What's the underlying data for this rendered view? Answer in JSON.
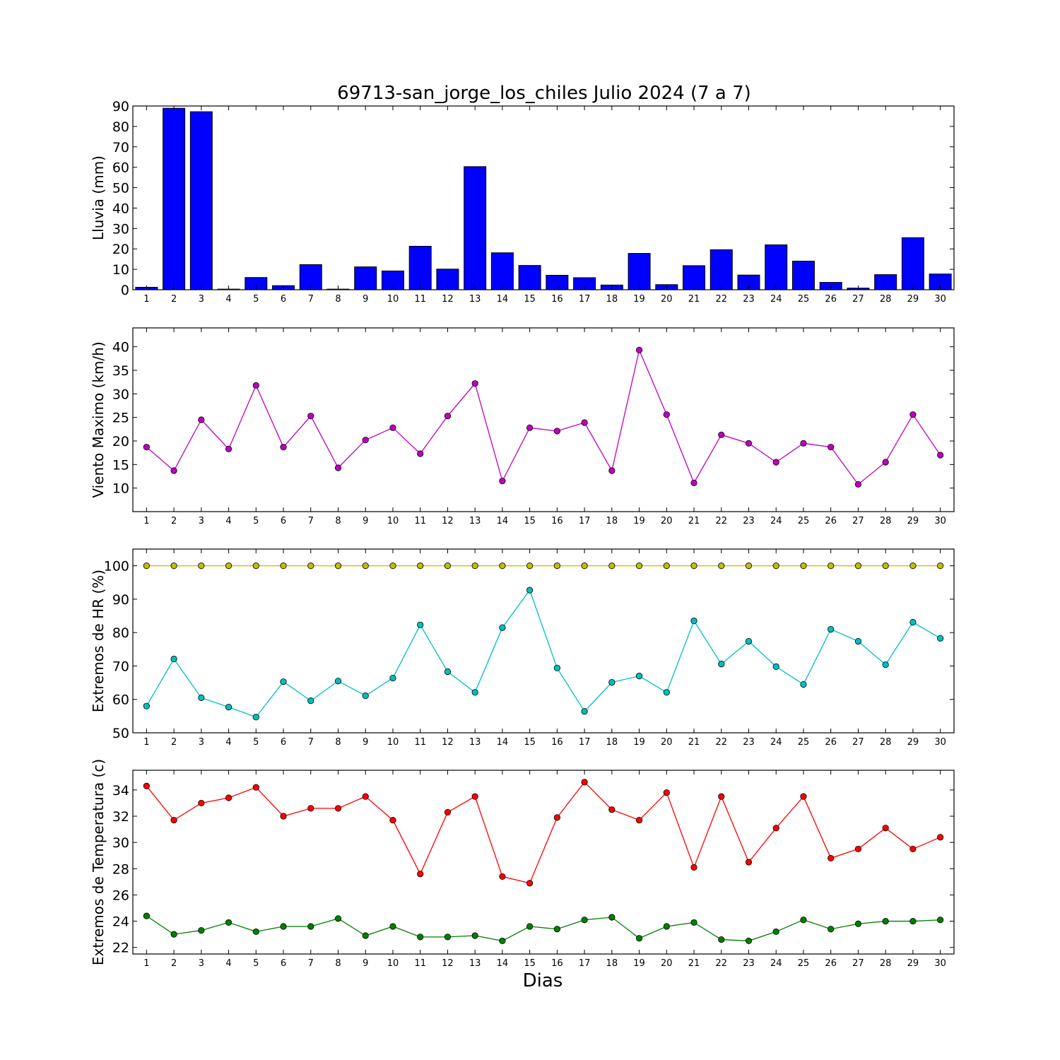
{
  "figure": {
    "title": "69713-san_jorge_los_chiles Julio 2024  (7 a 7)",
    "xlabel": "Dias"
  },
  "chart_data": [
    {
      "type": "bar",
      "ylabel": "Lluvia (mm)",
      "ylim": [
        0,
        90
      ],
      "yticks": [
        0,
        10,
        20,
        30,
        40,
        50,
        60,
        70,
        80,
        90
      ],
      "categories": [
        "1",
        "2",
        "3",
        "4",
        "5",
        "6",
        "7",
        "8",
        "9",
        "10",
        "11",
        "12",
        "13",
        "14",
        "15",
        "16",
        "17",
        "18",
        "19",
        "20",
        "21",
        "22",
        "23",
        "24",
        "25",
        "26",
        "27",
        "28",
        "29",
        "30"
      ],
      "bar_color": "#0000ff",
      "series": [
        {
          "values": [
            1.2,
            88.9,
            87.2,
            0.3,
            6.0,
            2.0,
            12.3,
            0.3,
            11.2,
            9.2,
            21.3,
            10.1,
            60.3,
            18.1,
            11.9,
            7.1,
            5.9,
            2.3,
            17.8,
            2.5,
            11.8,
            19.6,
            7.2,
            22.0,
            14.0,
            3.6,
            0.8,
            7.4,
            25.5,
            7.7
          ]
        }
      ],
      "grid": false
    },
    {
      "type": "line",
      "ylabel": "Viento Maximo (km/h)",
      "ylim": [
        5,
        44
      ],
      "yticks": [
        10,
        15,
        20,
        25,
        30,
        35,
        40
      ],
      "x": [
        1,
        2,
        3,
        4,
        5,
        6,
        7,
        8,
        9,
        10,
        11,
        12,
        13,
        14,
        15,
        16,
        17,
        18,
        19,
        20,
        21,
        22,
        23,
        24,
        25,
        26,
        27,
        28,
        29,
        30
      ],
      "series": [
        {
          "color": "#bf00bf",
          "values": [
            18.7,
            13.7,
            24.5,
            18.3,
            31.8,
            18.7,
            25.3,
            14.3,
            20.2,
            22.8,
            17.3,
            25.3,
            32.2,
            11.5,
            22.8,
            22.1,
            23.9,
            13.7,
            39.3,
            25.6,
            11.1,
            21.3,
            19.5,
            15.5,
            19.5,
            18.7,
            10.8,
            15.5,
            25.6,
            17.0
          ]
        }
      ],
      "grid": false
    },
    {
      "type": "line",
      "ylabel": "Extremos de HR (%)",
      "ylim": [
        50,
        105
      ],
      "yticks": [
        50,
        60,
        70,
        80,
        90,
        100
      ],
      "x": [
        1,
        2,
        3,
        4,
        5,
        6,
        7,
        8,
        9,
        10,
        11,
        12,
        13,
        14,
        15,
        16,
        17,
        18,
        19,
        20,
        21,
        22,
        23,
        24,
        25,
        26,
        27,
        28,
        29,
        30
      ],
      "series": [
        {
          "color": "#bfbf00",
          "values": [
            100,
            100,
            100,
            100,
            100,
            100,
            100,
            100,
            100,
            100,
            100,
            100,
            100,
            100,
            100,
            100,
            100,
            100,
            100,
            100,
            100,
            100,
            100,
            100,
            100,
            100,
            100,
            100,
            100,
            100
          ]
        },
        {
          "color": "#00bfbf",
          "values": [
            58,
            72.1,
            60.5,
            57.7,
            54.7,
            65.3,
            59.6,
            65.5,
            61.1,
            66.4,
            82.3,
            68.3,
            62.1,
            81.5,
            92.7,
            69.4,
            56.4,
            65.1,
            67,
            62.1,
            83.5,
            70.6,
            77.4,
            69.8,
            64.5,
            81,
            77.4,
            70.4,
            83.1,
            78.3
          ]
        }
      ],
      "grid": false
    },
    {
      "type": "line",
      "ylabel": "Extremos de Temperatura (c)",
      "ylim": [
        21.5,
        35.5
      ],
      "yticks": [
        22,
        24,
        26,
        28,
        30,
        32,
        34
      ],
      "x": [
        1,
        2,
        3,
        4,
        5,
        6,
        7,
        8,
        9,
        10,
        11,
        12,
        13,
        14,
        15,
        16,
        17,
        18,
        19,
        20,
        21,
        22,
        23,
        24,
        25,
        26,
        27,
        28,
        29,
        30
      ],
      "series": [
        {
          "color": "#ff0000",
          "values": [
            34.3,
            31.7,
            33.0,
            33.4,
            34.2,
            32.0,
            32.6,
            32.6,
            33.5,
            31.7,
            27.6,
            32.3,
            33.5,
            27.4,
            26.9,
            31.9,
            34.6,
            32.5,
            31.7,
            33.8,
            28.1,
            33.5,
            28.5,
            31.1,
            33.5,
            28.8,
            29.5,
            31.1,
            29.5,
            30.4
          ]
        },
        {
          "color": "#008000",
          "values": [
            24.4,
            23.0,
            23.3,
            23.9,
            23.2,
            23.6,
            23.6,
            24.2,
            22.9,
            23.6,
            22.8,
            22.8,
            22.9,
            22.5,
            23.6,
            23.4,
            24.1,
            24.3,
            22.7,
            23.6,
            23.9,
            22.6,
            22.5,
            23.2,
            24.1,
            23.4,
            23.8,
            24.0,
            24.0,
            24.1
          ]
        }
      ],
      "grid": false
    }
  ]
}
